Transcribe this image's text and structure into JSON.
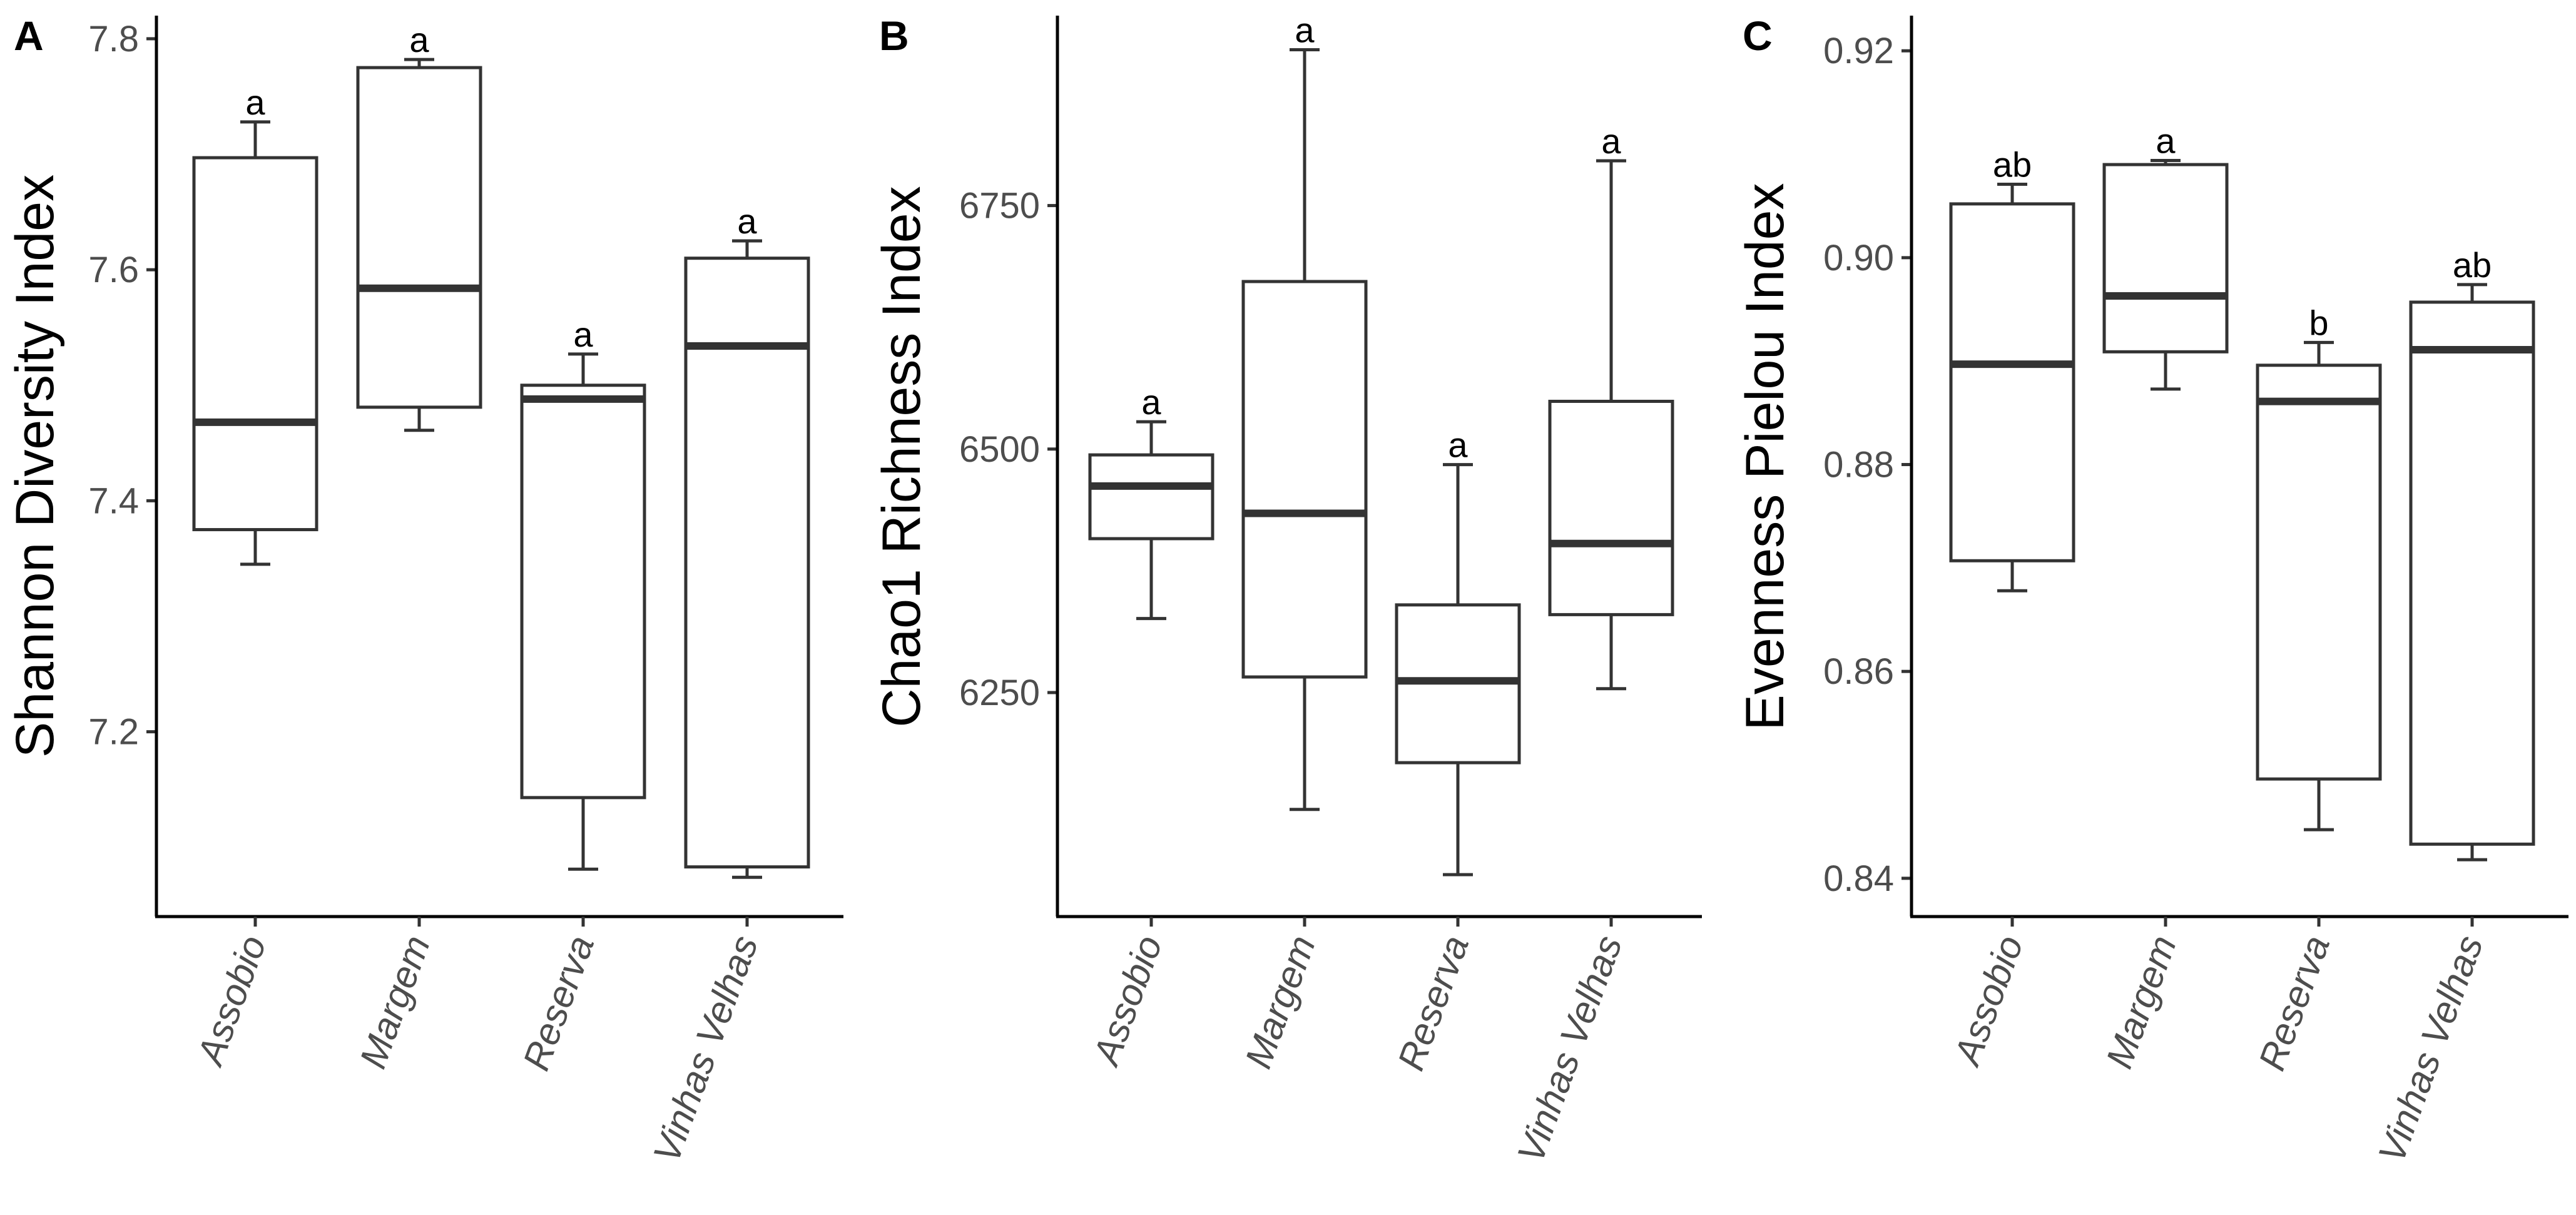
{
  "chart_data": [
    {
      "type": "boxplot",
      "panel": "A",
      "ylabel": "Shannon Diversity Index",
      "ylim": [
        7.04,
        7.82
      ],
      "yticks": [
        7.2,
        7.4,
        7.6,
        7.8
      ],
      "ytick_labels": [
        "7.2",
        "7.4",
        "7.6",
        "7.8"
      ],
      "categories": [
        "Assobio",
        "Margem",
        "Reserva",
        "Vinhas Velhas"
      ],
      "boxes": [
        {
          "min": 7.345,
          "q1": 7.375,
          "median": 7.468,
          "q3": 7.697,
          "max": 7.728,
          "letter": "a"
        },
        {
          "min": 7.461,
          "q1": 7.481,
          "median": 7.584,
          "q3": 7.775,
          "max": 7.782,
          "letter": "a"
        },
        {
          "min": 7.081,
          "q1": 7.143,
          "median": 7.488,
          "q3": 7.5,
          "max": 7.527,
          "letter": "a"
        },
        {
          "min": 7.074,
          "q1": 7.083,
          "median": 7.534,
          "q3": 7.61,
          "max": 7.625,
          "letter": "a"
        }
      ]
    },
    {
      "type": "boxplot",
      "panel": "B",
      "ylabel": "Chao1 Richness Index",
      "ylim": [
        6020,
        6945
      ],
      "yticks": [
        6250,
        6500,
        6750
      ],
      "ytick_labels": [
        "6250",
        "6500",
        "6750"
      ],
      "categories": [
        "Assobio",
        "Margem",
        "Reserva",
        "Vinhas Velhas"
      ],
      "boxes": [
        {
          "min": 6326,
          "q1": 6408,
          "median": 6462,
          "q3": 6494,
          "max": 6528,
          "letter": "a"
        },
        {
          "min": 6130,
          "q1": 6266,
          "median": 6434,
          "q3": 6672,
          "max": 6910,
          "letter": "a"
        },
        {
          "min": 6063,
          "q1": 6178,
          "median": 6262,
          "q3": 6340,
          "max": 6484,
          "letter": "a"
        },
        {
          "min": 6254,
          "q1": 6330,
          "median": 6403,
          "q3": 6549,
          "max": 6796,
          "letter": "a"
        }
      ]
    },
    {
      "type": "boxplot",
      "panel": "C",
      "ylabel": "Evenness Pielou Index",
      "ylim": [
        0.8363,
        0.9234
      ],
      "yticks": [
        0.84,
        0.86,
        0.88,
        0.9,
        0.92
      ],
      "ytick_labels": [
        "0.84",
        "0.86",
        "0.88",
        "0.90",
        "0.92"
      ],
      "categories": [
        "Assobio",
        "Margem",
        "Reserva",
        "Vinhas Velhas"
      ],
      "boxes": [
        {
          "min": 0.8678,
          "q1": 0.8707,
          "median": 0.8897,
          "q3": 0.9052,
          "max": 0.9071,
          "letter": "ab"
        },
        {
          "min": 0.8873,
          "q1": 0.8909,
          "median": 0.8963,
          "q3": 0.909,
          "max": 0.9094,
          "letter": "a"
        },
        {
          "min": 0.8447,
          "q1": 0.8496,
          "median": 0.8861,
          "q3": 0.8896,
          "max": 0.8918,
          "letter": "b"
        },
        {
          "min": 0.8418,
          "q1": 0.8433,
          "median": 0.8911,
          "q3": 0.8957,
          "max": 0.8974,
          "letter": "ab"
        }
      ]
    }
  ]
}
